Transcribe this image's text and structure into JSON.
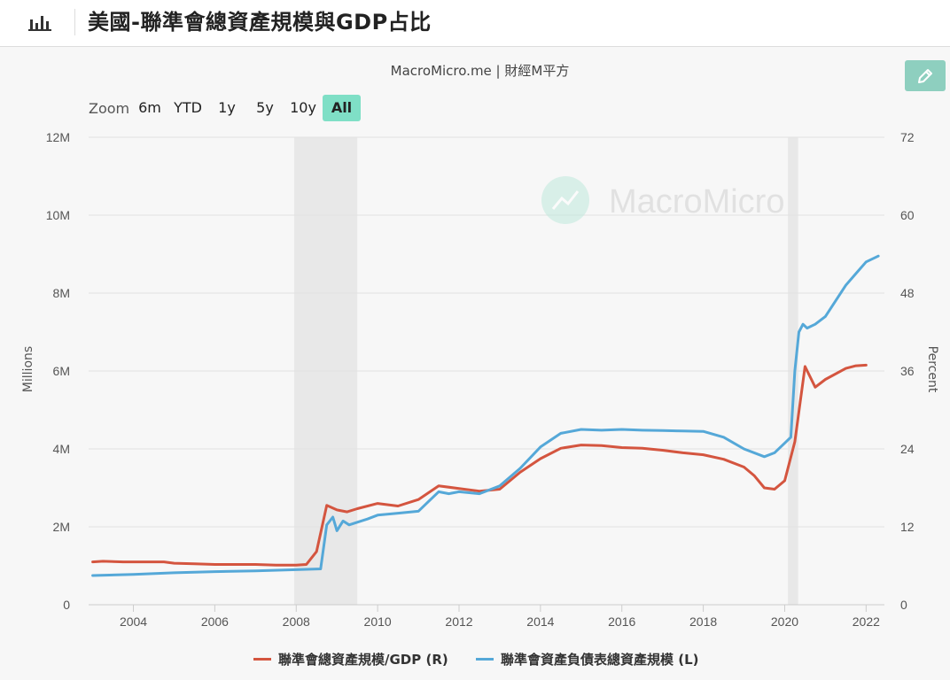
{
  "header": {
    "title": "美國-聯準會總資產規模與GDP占比",
    "icon": "bar-chart-icon"
  },
  "source": "MacroMicro.me | 財經M平方",
  "watermark": "MacroMicro",
  "zoom": {
    "label": "Zoom",
    "options": [
      "6m",
      "YTD",
      "1y",
      "5y",
      "10y",
      "All"
    ],
    "active": "All"
  },
  "colors": {
    "accent": "#7fdfc6",
    "red_series": "#d4553f",
    "blue_series": "#55a8d8",
    "recession": "#e8e8e8"
  },
  "chart_data": {
    "type": "line",
    "title": "美國-聯準會總資產規模與GDP占比",
    "grid": true,
    "legend_position": "bottom-center",
    "x_axis": {
      "ticks": [
        "2004",
        "2006",
        "2008",
        "2010",
        "2012",
        "2014",
        "2016",
        "2018",
        "2020",
        "2022"
      ],
      "range": [
        2002.9,
        2022.45
      ]
    },
    "y_left": {
      "label": "Millions",
      "ticks": [
        "0",
        "2M",
        "4M",
        "6M",
        "8M",
        "10M",
        "12M"
      ],
      "range": [
        0,
        12
      ]
    },
    "y_right": {
      "label": "Percent",
      "ticks": [
        "0",
        "12",
        "24",
        "36",
        "48",
        "60",
        "72"
      ],
      "range": [
        0,
        72
      ]
    },
    "shaded_periods": [
      [
        2007.95,
        2009.5
      ],
      [
        2020.08,
        2020.33
      ]
    ],
    "series": [
      {
        "name": "聯準會總資產規模/GDP (R)",
        "axis": "right",
        "x": [
          2003.0,
          2003.25,
          2003.75,
          2004.0,
          2004.25,
          2004.75,
          2005.0,
          2005.5,
          2006.0,
          2006.5,
          2007.0,
          2007.5,
          2008.0,
          2008.25,
          2008.5,
          2008.75,
          2009.0,
          2009.25,
          2009.5,
          2010.0,
          2010.5,
          2011.0,
          2011.5,
          2012.0,
          2012.5,
          2013.0,
          2013.5,
          2014.0,
          2014.5,
          2015.0,
          2015.5,
          2016.0,
          2016.5,
          2017.0,
          2017.5,
          2018.0,
          2018.5,
          2019.0,
          2019.25,
          2019.5,
          2019.75,
          2020.0,
          2020.25,
          2020.5,
          2020.75,
          2021.0,
          2021.5,
          2021.75,
          2022.0
        ],
        "values": [
          6.6,
          6.7,
          6.6,
          6.6,
          6.6,
          6.6,
          6.4,
          6.3,
          6.2,
          6.2,
          6.2,
          6.1,
          6.1,
          6.2,
          8.2,
          15.3,
          14.6,
          14.3,
          14.8,
          15.6,
          15.2,
          16.2,
          18.3,
          17.9,
          17.5,
          17.8,
          20.4,
          22.5,
          24.1,
          24.6,
          24.5,
          24.2,
          24.1,
          23.8,
          23.4,
          23.1,
          22.4,
          21.2,
          19.9,
          18.0,
          17.8,
          19.1,
          25.1,
          36.7,
          33.5,
          34.7,
          36.4,
          36.8,
          36.9
        ]
      },
      {
        "name": "聯準會資產負債表總資產規模 (L)",
        "axis": "left",
        "x": [
          2003.0,
          2004.0,
          2005.0,
          2006.0,
          2007.0,
          2008.0,
          2008.6,
          2008.75,
          2008.9,
          2009.0,
          2009.15,
          2009.3,
          2009.45,
          2009.75,
          2010.0,
          2010.5,
          2011.0,
          2011.25,
          2011.5,
          2011.75,
          2012.0,
          2012.5,
          2013.0,
          2013.5,
          2014.0,
          2014.5,
          2015.0,
          2015.5,
          2016.0,
          2016.5,
          2017.0,
          2017.5,
          2018.0,
          2018.5,
          2019.0,
          2019.5,
          2019.75,
          2020.0,
          2020.15,
          2020.25,
          2020.35,
          2020.45,
          2020.55,
          2020.75,
          2021.0,
          2021.25,
          2021.5,
          2021.75,
          2022.0,
          2022.3
        ],
        "values": [
          0.75,
          0.78,
          0.82,
          0.85,
          0.87,
          0.9,
          0.92,
          2.05,
          2.25,
          1.9,
          2.15,
          2.05,
          2.1,
          2.2,
          2.3,
          2.35,
          2.4,
          2.65,
          2.9,
          2.85,
          2.9,
          2.85,
          3.05,
          3.5,
          4.05,
          4.4,
          4.5,
          4.48,
          4.5,
          4.48,
          4.47,
          4.46,
          4.45,
          4.3,
          4.0,
          3.8,
          3.9,
          4.15,
          4.3,
          6.0,
          7.0,
          7.2,
          7.1,
          7.2,
          7.4,
          7.8,
          8.2,
          8.5,
          8.8,
          8.95
        ]
      }
    ]
  }
}
